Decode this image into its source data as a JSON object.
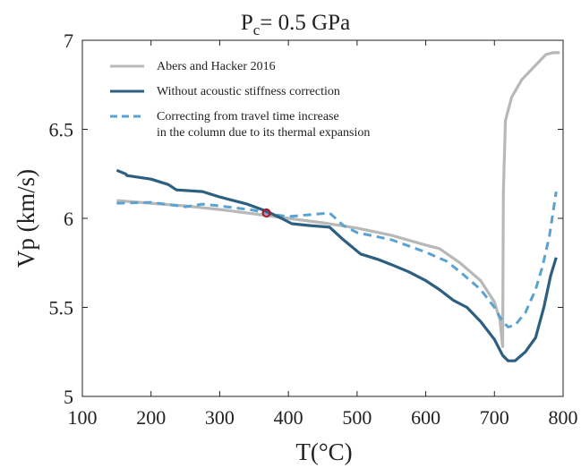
{
  "chart_data": {
    "type": "line",
    "title": "P",
    "title_subscript": "c",
    "title_suffix": "= 0.5 GPa",
    "xlabel": "T(°C)",
    "ylabel": "Vp (km/s)",
    "xlim": [
      100,
      800
    ],
    "ylim": [
      5,
      7
    ],
    "xticks": [
      "100",
      "200",
      "300",
      "400",
      "500",
      "600",
      "700",
      "800"
    ],
    "yticks": [
      "5",
      "5.5",
      "6",
      "6.5",
      "7"
    ],
    "grid": false,
    "legend_position": "top-left",
    "series": [
      {
        "name": "Abers and Hacker 2016",
        "color": "#b8b8b8",
        "style": "solid",
        "points": [
          [
            150,
            6.1
          ],
          [
            200,
            6.085
          ],
          [
            250,
            6.07
          ],
          [
            300,
            6.05
          ],
          [
            350,
            6.025
          ],
          [
            400,
            6.0
          ],
          [
            450,
            5.975
          ],
          [
            500,
            5.945
          ],
          [
            550,
            5.905
          ],
          [
            600,
            5.85
          ],
          [
            620,
            5.83
          ],
          [
            650,
            5.75
          ],
          [
            680,
            5.65
          ],
          [
            700,
            5.53
          ],
          [
            708,
            5.43
          ],
          [
            712,
            5.28
          ],
          [
            713,
            6.15
          ],
          [
            716,
            6.55
          ],
          [
            725,
            6.68
          ],
          [
            740,
            6.78
          ],
          [
            760,
            6.86
          ],
          [
            775,
            6.92
          ],
          [
            785,
            6.93
          ],
          [
            795,
            6.93
          ]
        ]
      },
      {
        "name": "Without acoustic stiffness correction",
        "color": "#2c5f80",
        "style": "solid",
        "points": [
          [
            150,
            6.27
          ],
          [
            163,
            6.25
          ],
          [
            165,
            6.24
          ],
          [
            200,
            6.22
          ],
          [
            225,
            6.19
          ],
          [
            237,
            6.16
          ],
          [
            275,
            6.15
          ],
          [
            300,
            6.12
          ],
          [
            340,
            6.08
          ],
          [
            368,
            6.04
          ],
          [
            390,
            6.0
          ],
          [
            405,
            5.97
          ],
          [
            430,
            5.96
          ],
          [
            460,
            5.95
          ],
          [
            480,
            5.88
          ],
          [
            505,
            5.8
          ],
          [
            530,
            5.77
          ],
          [
            550,
            5.74
          ],
          [
            575,
            5.7
          ],
          [
            600,
            5.65
          ],
          [
            620,
            5.6
          ],
          [
            640,
            5.54
          ],
          [
            660,
            5.5
          ],
          [
            680,
            5.42
          ],
          [
            700,
            5.32
          ],
          [
            712,
            5.23
          ],
          [
            720,
            5.2
          ],
          [
            730,
            5.2
          ],
          [
            745,
            5.25
          ],
          [
            760,
            5.33
          ],
          [
            772,
            5.5
          ],
          [
            782,
            5.68
          ],
          [
            790,
            5.78
          ]
        ]
      },
      {
        "name": "Correcting from travel time increase in the column  due to its thermal expansion",
        "legend_lines": [
          "Correcting from travel time increase",
          "in the column  due to its thermal expansion"
        ],
        "color": "#5aa2d0",
        "style": "dashed",
        "points": [
          [
            150,
            6.085
          ],
          [
            200,
            6.09
          ],
          [
            250,
            6.065
          ],
          [
            275,
            6.08
          ],
          [
            300,
            6.07
          ],
          [
            350,
            6.045
          ],
          [
            380,
            6.02
          ],
          [
            400,
            6.01
          ],
          [
            430,
            6.02
          ],
          [
            460,
            6.03
          ],
          [
            480,
            5.96
          ],
          [
            500,
            5.92
          ],
          [
            550,
            5.88
          ],
          [
            600,
            5.81
          ],
          [
            630,
            5.76
          ],
          [
            650,
            5.7
          ],
          [
            680,
            5.6
          ],
          [
            700,
            5.5
          ],
          [
            712,
            5.42
          ],
          [
            720,
            5.39
          ],
          [
            730,
            5.4
          ],
          [
            745,
            5.47
          ],
          [
            760,
            5.6
          ],
          [
            770,
            5.73
          ],
          [
            780,
            5.9
          ],
          [
            790,
            6.15
          ]
        ]
      }
    ],
    "marker": {
      "x": 368,
      "y": 6.03,
      "color": "#b5182a"
    }
  }
}
